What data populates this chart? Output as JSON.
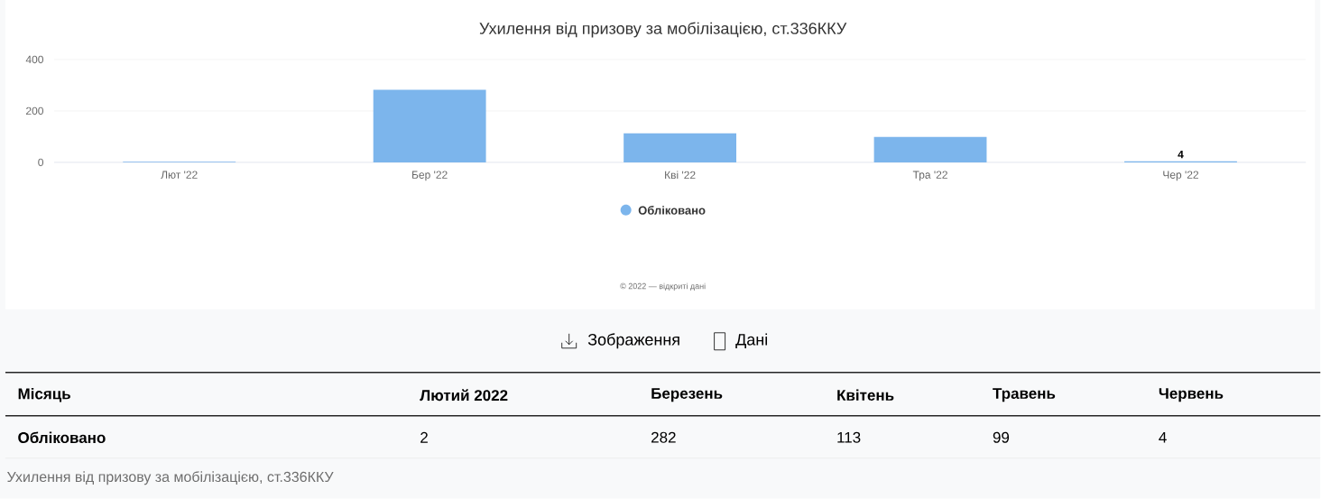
{
  "chart_data": {
    "type": "bar",
    "title": "Ухилення від призову за мобілізацією, ст.336ККУ",
    "categories": [
      "Лют '22",
      "Бер '22",
      "Кві '22",
      "Тра '22",
      "Чер '22"
    ],
    "series": [
      {
        "name": "Обліковано",
        "color": "#7cb5ec",
        "values": [
          2,
          282,
          113,
          99,
          4
        ],
        "value_labels": [
          null,
          null,
          null,
          null,
          "4"
        ]
      }
    ],
    "ylim": [
      0,
      400
    ],
    "yticks": [
      0,
      200,
      400
    ],
    "grid": "y",
    "legend": "bottom",
    "data_labels": true,
    "annotations": [
      "© 2022 — відкриті дані",
      "Зображення",
      "Дані",
      "Місяць",
      "Лютий 2022",
      "Березень",
      "Квітень",
      "Травень",
      "Червень",
      "Ухилення від призову за мобілізацією, ст.336ККУ",
      "2",
      "282",
      "113",
      "99",
      "4"
    ]
  }
}
